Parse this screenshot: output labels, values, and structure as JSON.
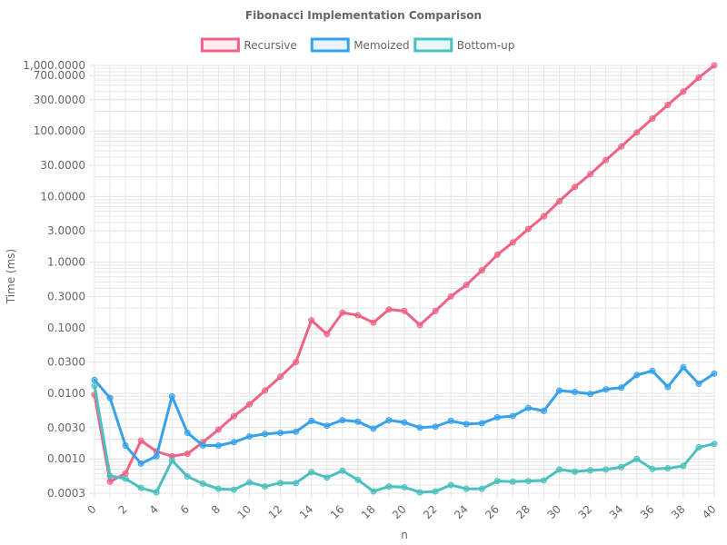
{
  "chart_data": {
    "type": "line",
    "title": "Fibonacci Implementation Comparison",
    "xlabel": "n",
    "ylabel": "Time (ms)",
    "y_scale": "log",
    "ylim": [
      0.0003,
      1000
    ],
    "xlim": [
      0,
      40
    ],
    "grid": true,
    "legend_position": "top",
    "x": [
      0,
      1,
      2,
      3,
      4,
      5,
      6,
      7,
      8,
      9,
      10,
      11,
      12,
      13,
      14,
      15,
      16,
      17,
      18,
      19,
      20,
      21,
      22,
      23,
      24,
      25,
      26,
      27,
      28,
      29,
      30,
      31,
      32,
      33,
      34,
      35,
      36,
      37,
      38,
      39,
      40
    ],
    "x_tick_labels": [
      "0",
      "2",
      "4",
      "6",
      "8",
      "10",
      "12",
      "14",
      "16",
      "18",
      "20",
      "22",
      "24",
      "26",
      "28",
      "30",
      "32",
      "34",
      "36",
      "38",
      "40"
    ],
    "y_tick_values": [
      0.0003,
      0.001,
      0.003,
      0.01,
      0.03,
      0.1,
      0.3,
      1,
      3,
      10,
      30,
      100,
      300,
      700,
      1000
    ],
    "y_tick_labels": [
      "0.0003",
      "0.0010",
      "0.0030",
      "0.0100",
      "0.0300",
      "0.1000",
      "0.3000",
      "1.0000",
      "3.0000",
      "10.0000",
      "30.0000",
      "100.0000",
      "300.0000",
      "700.0000",
      "1,000.0000"
    ],
    "series": [
      {
        "name": "Recursive",
        "color": "#ef6384",
        "values": [
          0.0095,
          0.00045,
          0.0006,
          0.0019,
          0.0013,
          0.0011,
          0.0012,
          0.0018,
          0.0028,
          0.0045,
          0.0068,
          0.011,
          0.018,
          0.03,
          0.13,
          0.08,
          0.17,
          0.155,
          0.12,
          0.19,
          0.18,
          0.11,
          0.18,
          0.3,
          0.45,
          0.75,
          1.3,
          2.0,
          3.2,
          5.0,
          8.5,
          14,
          22,
          36,
          58,
          95,
          155,
          250,
          400,
          650,
          1000
        ]
      },
      {
        "name": "Memoized",
        "color": "#36a2eb",
        "values": [
          0.016,
          0.0085,
          0.0016,
          0.00085,
          0.0011,
          0.009,
          0.0025,
          0.0016,
          0.0016,
          0.0018,
          0.0022,
          0.0024,
          0.0025,
          0.0026,
          0.0038,
          0.0032,
          0.0039,
          0.0037,
          0.0029,
          0.0039,
          0.0036,
          0.003,
          0.0031,
          0.0038,
          0.0034,
          0.0035,
          0.0043,
          0.0045,
          0.006,
          0.0054,
          0.011,
          0.0105,
          0.0098,
          0.0115,
          0.0122,
          0.019,
          0.022,
          0.0125,
          0.025,
          0.014,
          0.02
        ]
      },
      {
        "name": "Bottom-up",
        "color": "#4bc0c0",
        "values": [
          0.013,
          0.00055,
          0.0005,
          0.00036,
          0.00031,
          0.00095,
          0.00054,
          0.00042,
          0.00035,
          0.00034,
          0.00044,
          0.00038,
          0.00043,
          0.00043,
          0.00063,
          0.00052,
          0.00066,
          0.00048,
          0.00032,
          0.00038,
          0.00037,
          0.00031,
          0.00032,
          0.0004,
          0.00035,
          0.00035,
          0.00046,
          0.00045,
          0.00046,
          0.00047,
          0.00069,
          0.00064,
          0.00067,
          0.00069,
          0.00075,
          0.001,
          0.0007,
          0.00072,
          0.00078,
          0.0015,
          0.0017
        ]
      }
    ]
  }
}
